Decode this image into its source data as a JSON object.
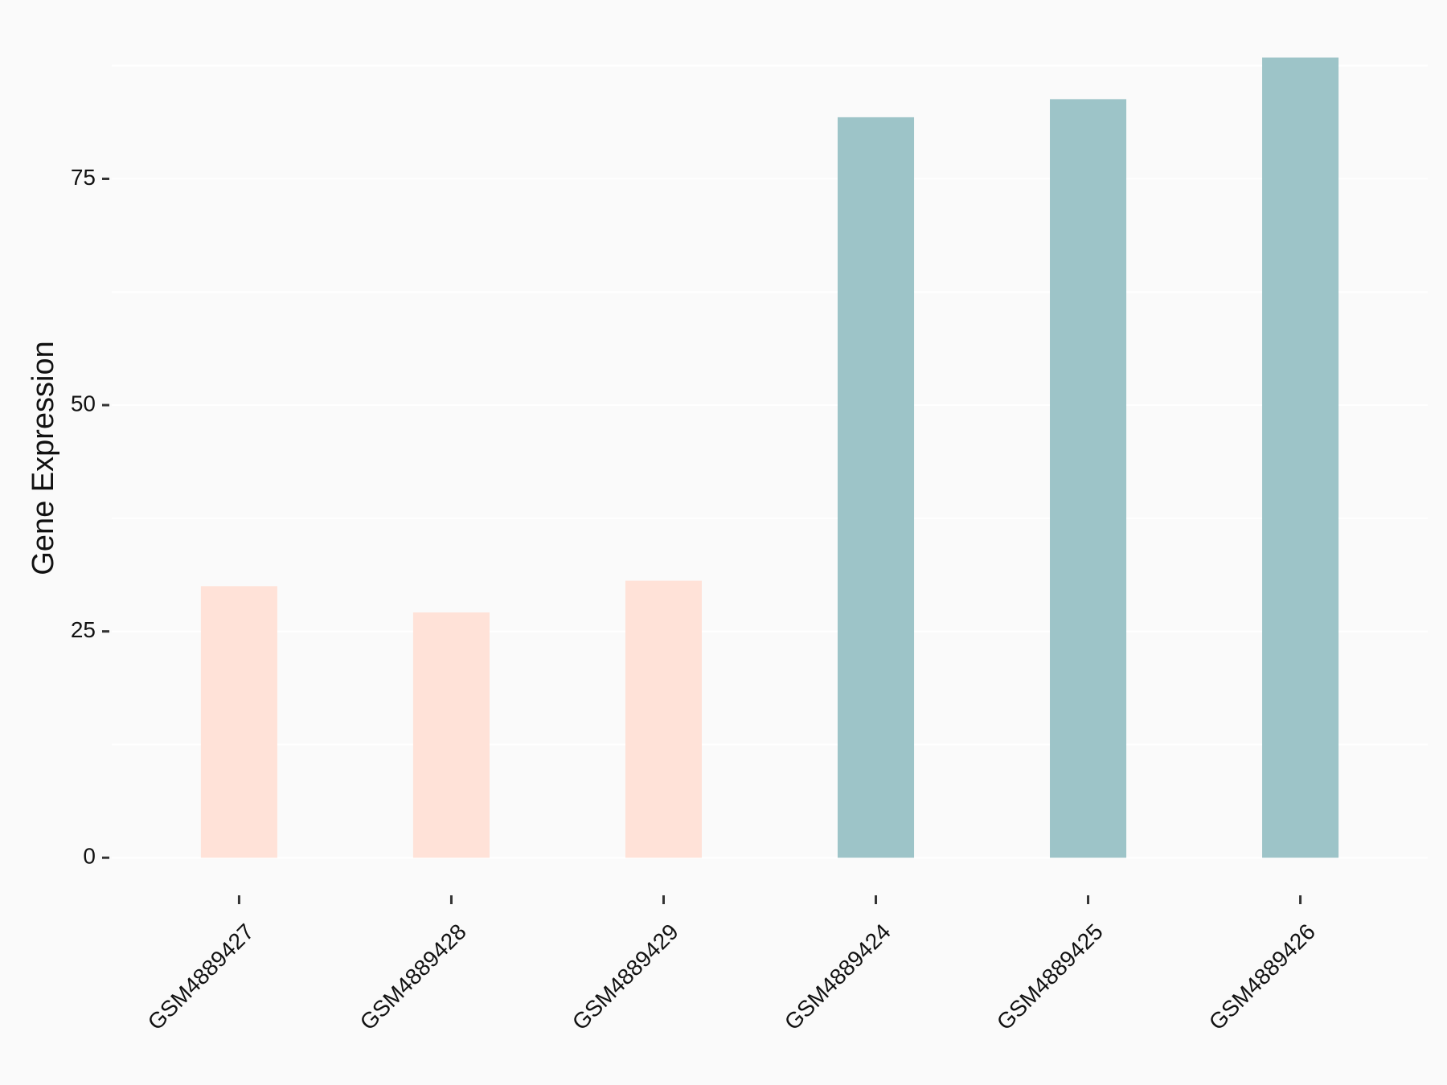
{
  "chart_data": {
    "type": "bar",
    "y_label": "Gene Expression",
    "categories": [
      "GSM4889427",
      "GSM4889428",
      "GSM4889429",
      "GSM4889424",
      "GSM4889425",
      "GSM4889426"
    ],
    "values": [
      30.0,
      27.1,
      30.6,
      81.8,
      83.8,
      88.4
    ],
    "colors": [
      "#ffe2d8",
      "#ffe2d8",
      "#ffe2d8",
      "#9dc4c8",
      "#9dc4c8",
      "#9dc4c8"
    ],
    "ylim": [
      -4.42,
      92.8
    ],
    "yticks": [
      0,
      25,
      50,
      75
    ],
    "minor_yticks": [
      12.5,
      37.5,
      62.5,
      87.5
    ],
    "grid": true
  }
}
